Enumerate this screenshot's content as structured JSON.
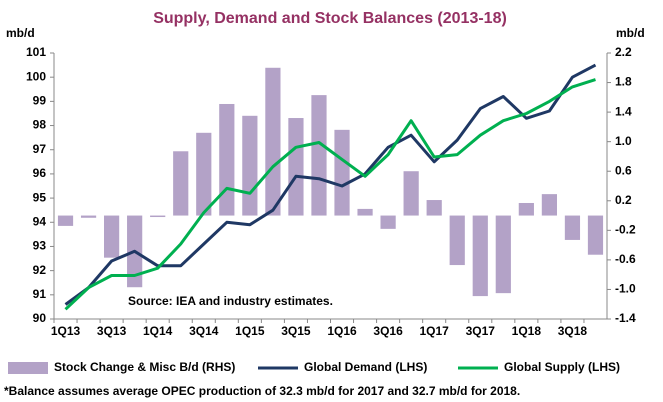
{
  "chart_data": {
    "type": "combo",
    "title": "Supply, Demand and Stock Balances (2013-18)",
    "ylabel": "mb/d",
    "y2label": "mb/d",
    "annotation": "Source: IEA  and industry estimates.",
    "footnote": "*Balance assumes average OPEC production of 32.3 mb/d for 2017 and 32.7 mb/d for 2018.",
    "categories": [
      "1Q13",
      null,
      "3Q13",
      null,
      "1Q14",
      null,
      "3Q14",
      null,
      "1Q15",
      null,
      "3Q15",
      null,
      "1Q16",
      null,
      "3Q16",
      null,
      "1Q17",
      null,
      "3Q17",
      null,
      "1Q18",
      null,
      "3Q18",
      null
    ],
    "series": [
      {
        "name": "Stock Change & Misc  B/d (RHS)",
        "type": "bar",
        "axis": "y2",
        "color": "#b3a2c7",
        "values": [
          -0.14,
          -0.03,
          -0.57,
          -0.97,
          -0.02,
          0.87,
          1.12,
          1.51,
          1.35,
          2.0,
          1.32,
          1.63,
          1.16,
          0.09,
          -0.18,
          0.6,
          0.21,
          -0.67,
          -1.09,
          -1.05,
          0.17,
          0.29,
          -0.33,
          -0.53
        ]
      },
      {
        "name": "Global Demand (LHS)",
        "type": "line",
        "color": "#1f3864",
        "values": [
          90.6,
          91.3,
          92.4,
          92.8,
          92.2,
          92.2,
          93.1,
          94.0,
          93.9,
          94.5,
          95.9,
          95.8,
          95.5,
          96.0,
          97.1,
          97.6,
          96.5,
          97.4,
          98.7,
          99.2,
          98.3,
          98.6,
          100.0,
          100.5
        ]
      },
      {
        "name": "Global Supply (LHS)",
        "type": "line",
        "color": "#00b050",
        "values": [
          90.4,
          91.3,
          91.8,
          91.8,
          92.1,
          93.1,
          94.4,
          95.4,
          95.2,
          96.3,
          97.1,
          97.3,
          96.6,
          95.9,
          96.8,
          98.2,
          96.7,
          96.8,
          97.6,
          98.2,
          98.5,
          99.0,
          99.6,
          99.9
        ]
      }
    ],
    "ylim": [
      90,
      101
    ],
    "yticks": [
      90,
      91,
      92,
      93,
      94,
      95,
      96,
      97,
      98,
      99,
      100,
      101
    ],
    "y2lim": [
      -1.4,
      2.2
    ],
    "y2ticks": [
      -1.4,
      {
        "value": -1,
        "label": "-1.0"
      },
      -0.6,
      -0.2,
      0.2,
      0.6,
      {
        "value": 1,
        "label": "1.0"
      },
      1.4,
      1.8,
      2.2
    ],
    "grid": false,
    "legend": "bottom",
    "title_color": "#953163"
  }
}
